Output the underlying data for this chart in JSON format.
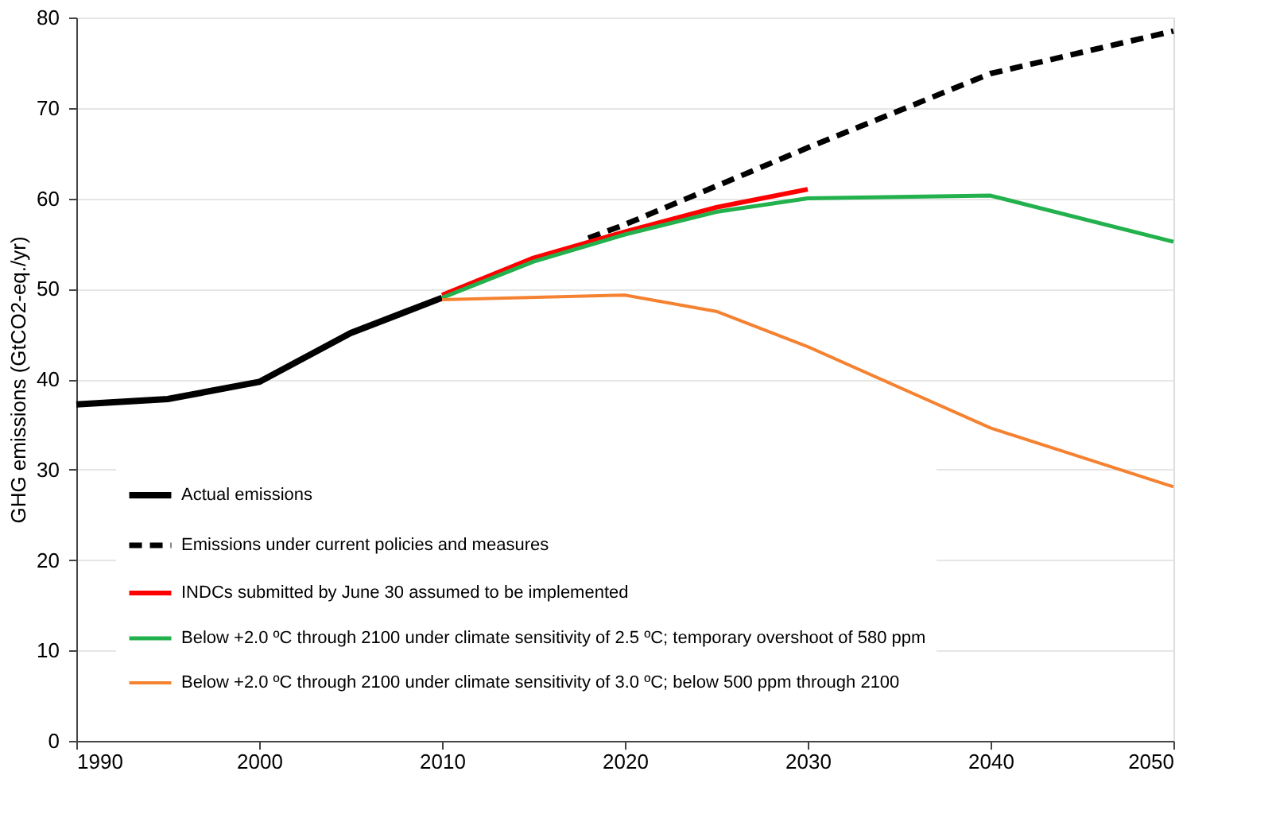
{
  "chart_data": {
    "type": "line",
    "ylabel": "GHG emissions (GtCO2-eq./yr)",
    "xlim": [
      1990,
      2050
    ],
    "xticks": [
      1990,
      2000,
      2010,
      2020,
      2030,
      2040,
      2050
    ],
    "ylim": [
      0,
      80
    ],
    "yticks": [
      0,
      10,
      20,
      30,
      40,
      50,
      60,
      70,
      80
    ],
    "grid": "y",
    "legend": "bottom left",
    "marker": "none",
    "series": [
      {
        "name": "Actual emissions",
        "color": "#000000",
        "line_style": "solid",
        "x": [
          1990,
          1995,
          2000,
          2005,
          2010
        ],
        "values": [
          37.2,
          37.8,
          39.7,
          45.1,
          49.0
        ]
      },
      {
        "name": "Emissions under current policies and measures",
        "color": "#000000",
        "line_style": "dashed",
        "x": [
          2018,
          2020,
          2030,
          2040,
          2050
        ],
        "values": [
          55.6,
          57.1,
          65.6,
          73.8,
          78.5
        ]
      },
      {
        "name": "INDCs submitted by June 30 assumed to be implemented",
        "color": "#ff0000",
        "line_style": "solid",
        "x": [
          2010,
          2015,
          2020,
          2025,
          2030
        ],
        "values": [
          49.3,
          53.4,
          56.3,
          59.0,
          61.0
        ]
      },
      {
        "name": "Below +2.0 ºC through 2100 under climate sensitivity of 2.5 ºC; temporary overshoot of 580 ppm",
        "color": "#22b14c",
        "line_style": "solid",
        "x": [
          2010,
          2015,
          2020,
          2025,
          2030,
          2040,
          2050
        ],
        "values": [
          49.0,
          53.0,
          56.0,
          58.5,
          60.0,
          60.3,
          55.2
        ]
      },
      {
        "name": "Below +2.0 ºC through 2100 under climate sensitivity of 3.0 ºC; below 500 ppm through 2100",
        "color": "#f58231",
        "line_style": "solid",
        "x": [
          2010,
          2020,
          2025,
          2030,
          2040,
          2050
        ],
        "values": [
          48.8,
          49.3,
          47.5,
          43.6,
          34.6,
          28.1
        ]
      }
    ]
  }
}
